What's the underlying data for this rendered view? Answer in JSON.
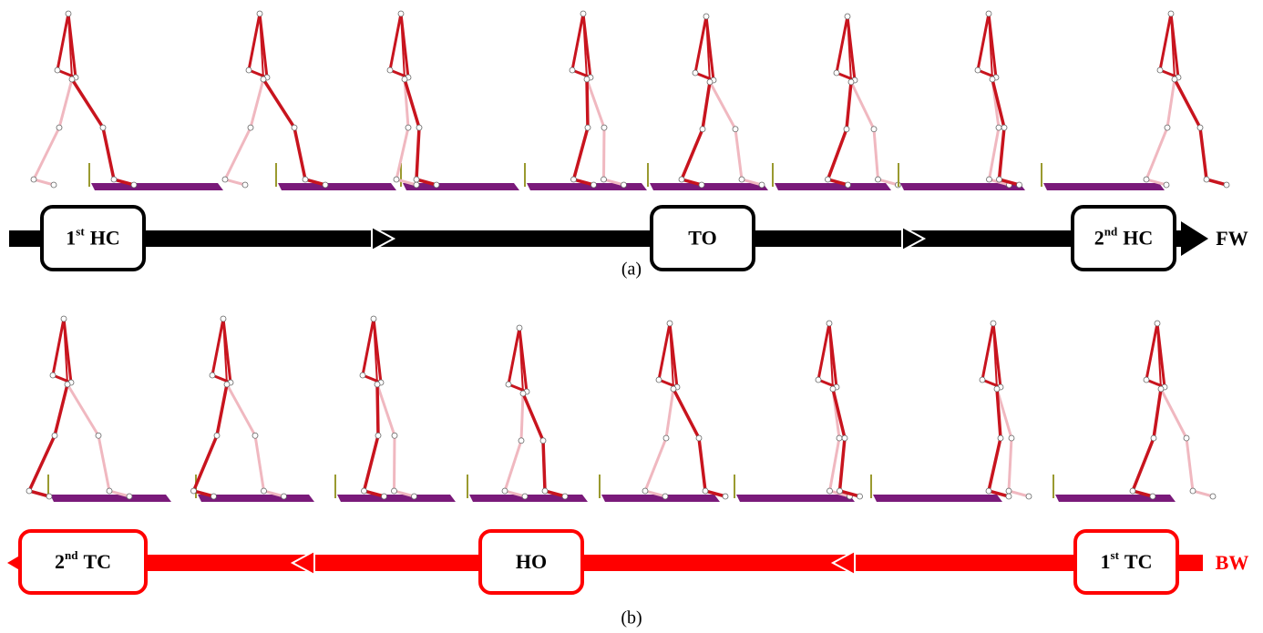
{
  "panel_a": {
    "events": [
      {
        "number": "1",
        "suffix": "st",
        "name": "HC"
      },
      {
        "name": "TO"
      },
      {
        "number": "2",
        "suffix": "nd",
        "name": "HC"
      }
    ],
    "direction": "FW",
    "caption": "(a)"
  },
  "panel_b": {
    "events": [
      {
        "number": "2",
        "suffix": "nd",
        "name": "TC"
      },
      {
        "name": "HO"
      },
      {
        "number": "1",
        "suffix": "st",
        "name": "TC"
      }
    ],
    "direction": "BW",
    "caption": "(b)"
  }
}
